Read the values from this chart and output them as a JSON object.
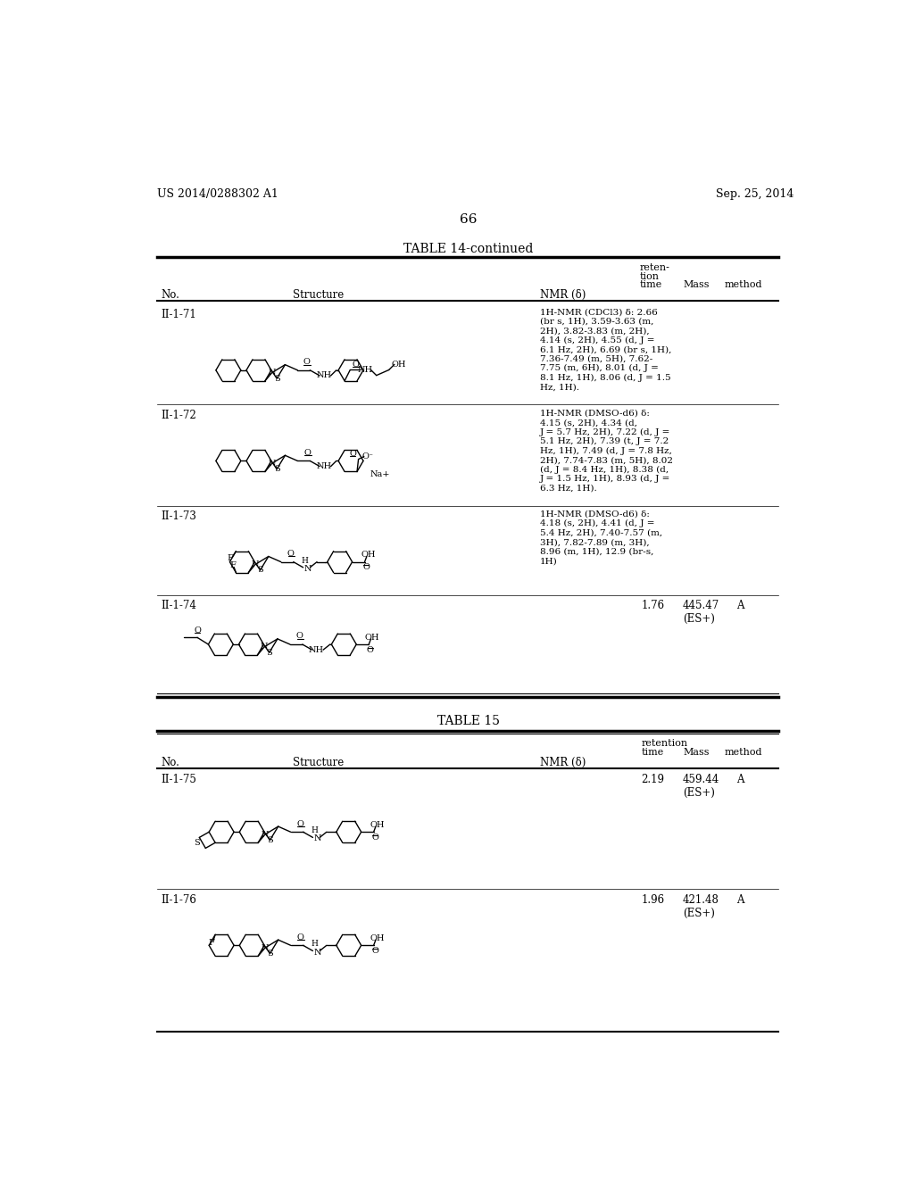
{
  "background_color": "#ffffff",
  "page_header_left": "US 2014/0288302 A1",
  "page_header_right": "Sep. 25, 2014",
  "page_number": "66",
  "table14_title": "TABLE 14-continued",
  "table15_title": "TABLE 15",
  "nmr_71": "1H-NMR (CDCl3) δ: 2.66\n(br s, 1H), 3.59-3.63 (m,\n2H), 3.82-3.83 (m, 2H),\n4.14 (s, 2H), 4.55 (d, J =\n6.1 Hz, 2H), 6.69 (br s, 1H),\n7.36-7.49 (m, 5H), 7.62-\n7.75 (m, 6H), 8.01 (d, J =\n8.1 Hz, 1H), 8.06 (d, J = 1.5\nHz, 1H).",
  "nmr_72": "1H-NMR (DMSO-d6) δ:\n4.15 (s, 2H), 4.34 (d,\nJ = 5.7 Hz, 2H), 7.22 (d, J =\n5.1 Hz, 2H), 7.39 (t, J = 7.2\nHz, 1H), 7.49 (d, J = 7.8 Hz,\n2H), 7.74-7.83 (m, 5H), 8.02\n(d, J = 8.4 Hz, 1H), 8.38 (d,\nJ = 1.5 Hz, 1H), 8.93 (d, J =\n6.3 Hz, 1H).",
  "nmr_73": "1H-NMR (DMSO-d6) δ:\n4.18 (s, 2H), 4.41 (d, J =\n5.4 Hz, 2H), 7.40-7.57 (m,\n3H), 7.82-7.89 (m, 3H),\n8.96 (m, 1H), 12.9 (br-s,\n1H)",
  "ret_74": "1.76",
  "mass_74": "445.47\n(ES+)",
  "method_74": "A",
  "ret_75": "2.19",
  "mass_75": "459.44\n(ES+)",
  "method_75": "A",
  "ret_76": "1.96",
  "mass_76": "421.48\n(ES+)",
  "method_76": "A"
}
